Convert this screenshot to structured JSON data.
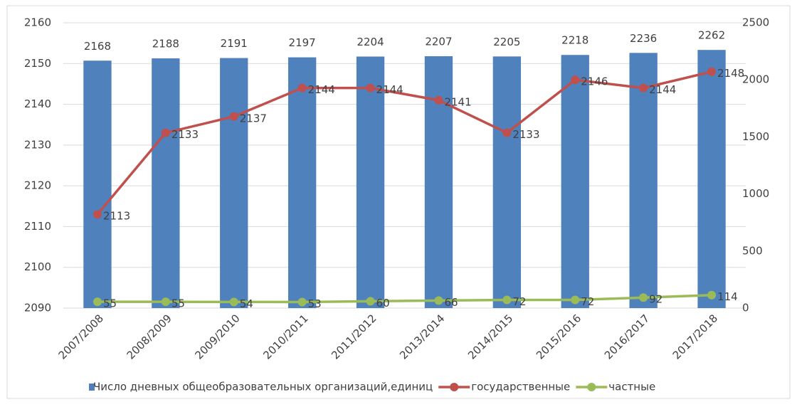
{
  "chart_data": {
    "type": "bar",
    "categories": [
      "2007/2008",
      "2008/2009",
      "2009/2010",
      "2010/2011",
      "2011/2012",
      "2013/2014",
      "2014/2015",
      "2015/2016",
      "2016/2017",
      "2017/2018"
    ],
    "series": [
      {
        "name": "Число дневных общеобразовательных организаций,единиц",
        "type": "bar",
        "axis": "y2",
        "color": "#4f81bd",
        "values": [
          2168,
          2188,
          2191,
          2197,
          2204,
          2207,
          2205,
          2218,
          2236,
          2262
        ]
      },
      {
        "name": "государственные",
        "type": "line",
        "axis": "y",
        "color": "#c0504d",
        "values": [
          2113,
          2133,
          2137,
          2144,
          2144,
          2141,
          2133,
          2146,
          2144,
          2148
        ]
      },
      {
        "name": "частные",
        "type": "line",
        "axis": "y2",
        "color": "#9bbb59",
        "values": [
          55,
          55,
          54,
          53,
          60,
          66,
          72,
          72,
          92,
          114
        ]
      }
    ],
    "ylim": [
      2090,
      2160
    ],
    "yticks": [
      2090,
      2100,
      2110,
      2120,
      2130,
      2140,
      2150,
      2160
    ],
    "y2lim": [
      0,
      2500
    ],
    "y2ticks": [
      0,
      500,
      1000,
      1500,
      2000,
      2500
    ],
    "grid": true,
    "legend": "bottom"
  }
}
